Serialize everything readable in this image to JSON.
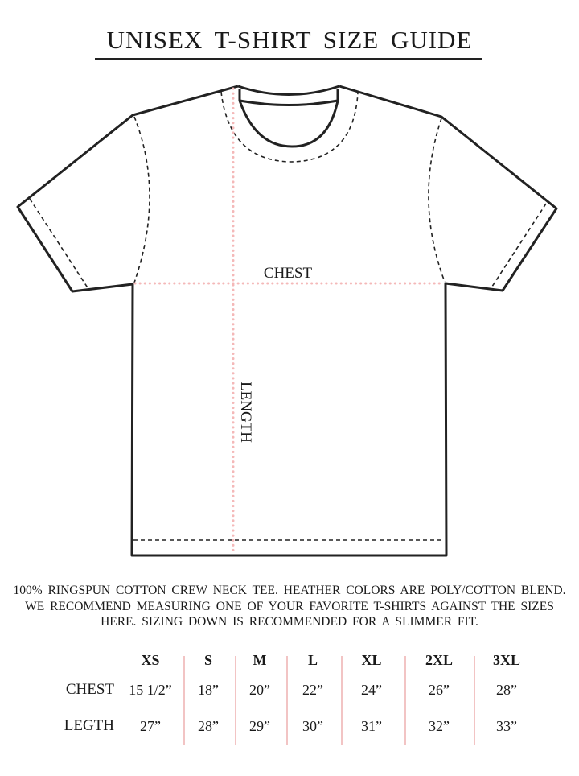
{
  "title": "UNISEX T-SHIRT SIZE GUIDE",
  "diagram": {
    "chest_label": "CHEST",
    "length_label": "LENGTH",
    "measure_line_color": "#f4b8b8",
    "outline_color": "#222222"
  },
  "description": "100% RINGSPUN COTTON CREW NECK TEE. HEATHER COLORS ARE POLY/COTTON BLEND. WE RECOMMEND MEASURING ONE OF YOUR FAVORITE T-SHIRTS AGAINST THE SIZES HERE. SIZING DOWN IS RECOMMENDED FOR A SLIMMER FIT.",
  "table": {
    "sizes": [
      "XS",
      "S",
      "M",
      "L",
      "XL",
      "2XL",
      "3XL"
    ],
    "rows": [
      {
        "label": "CHEST",
        "values": [
          "15 1/2”",
          "18”",
          "20”",
          "22”",
          "24”",
          "26”",
          "28”"
        ]
      },
      {
        "label": "LEGTH",
        "values": [
          "27”",
          "28”",
          "29”",
          "30”",
          "31”",
          "32”",
          "33”"
        ]
      }
    ],
    "separator_color": "#f2c4c4"
  }
}
